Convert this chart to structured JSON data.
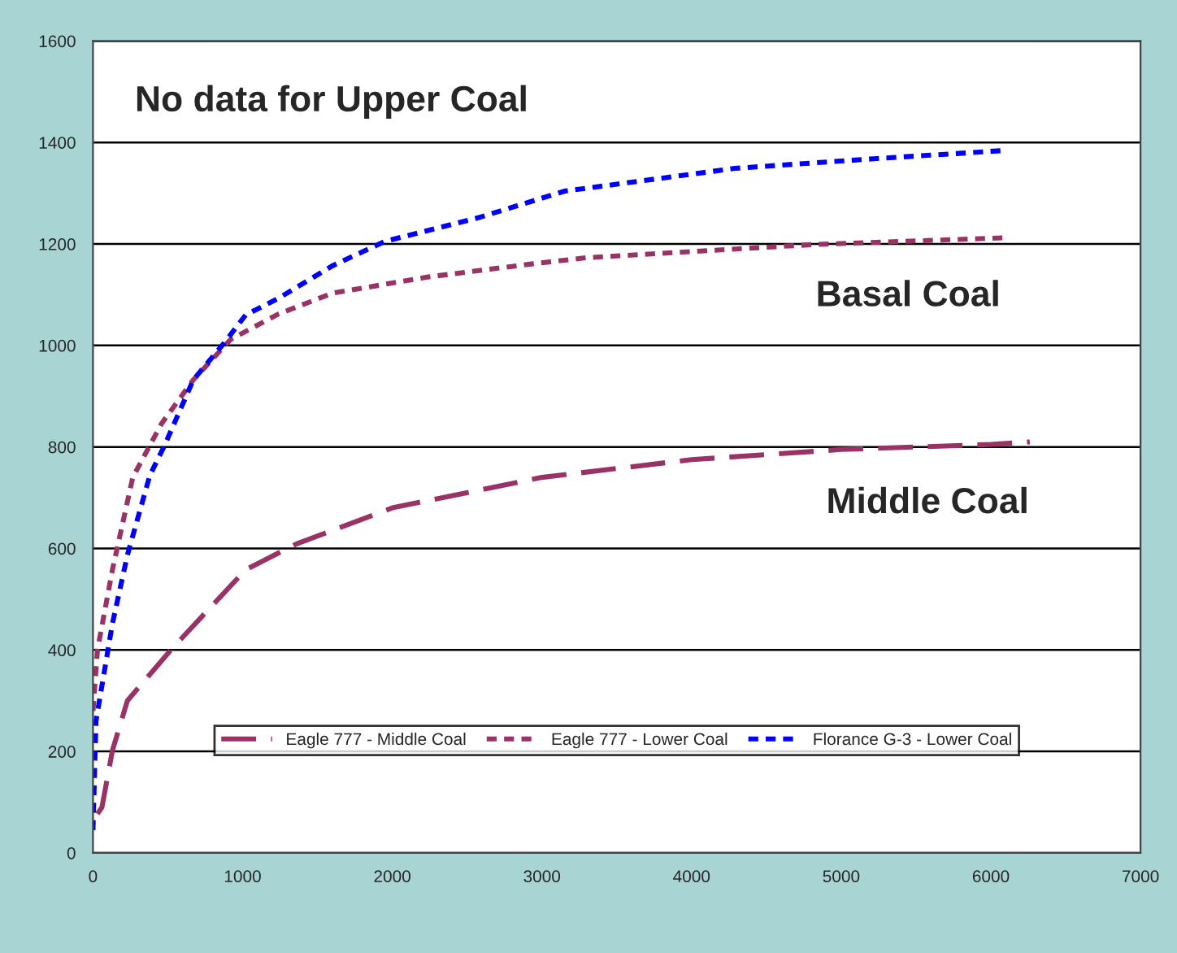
{
  "chart_data": {
    "type": "line",
    "xlim": [
      0,
      7000
    ],
    "xticks": [
      0,
      1000,
      2000,
      3000,
      4000,
      5000,
      6000,
      7000
    ],
    "ylim": [
      0,
      1600
    ],
    "yticks": [
      0,
      200,
      400,
      600,
      800,
      1000,
      1200,
      1400,
      1600
    ],
    "grid": "y",
    "legend": "bottom",
    "marker": "none",
    "annotations": [
      "No data for Upper Coal",
      "Basal Coal",
      "Middle Coal"
    ],
    "series": [
      {
        "name": "Eagle 777 - Middle Coal",
        "color": "#993366",
        "line_style": "dashed",
        "x": [
          30,
          60,
          130,
          230,
          520,
          1020,
          1360,
          2000,
          3000,
          4000,
          5000,
          6000,
          6260
        ],
        "values": [
          77,
          90,
          202,
          300,
          400,
          558,
          609,
          680,
          740,
          775,
          795,
          805,
          810
        ]
      },
      {
        "name": "Eagle 777 - Lower Coal",
        "color": "#993366",
        "line_style": "dotted",
        "x": [
          0,
          30,
          130,
          230,
          266,
          458,
          670,
          920,
          1240,
          1600,
          2240,
          2940,
          3300,
          4820,
          6080
        ],
        "values": [
          280,
          400,
          558,
          692,
          740,
          846,
          932,
          1012,
          1062,
          1103,
          1135,
          1161,
          1173,
          1199,
          1212
        ]
      },
      {
        "name": "Florance G-3 - Lower Coal",
        "color": "#0000ff",
        "line_style": "dotted",
        "x": [
          0,
          20,
          130,
          230,
          380,
          480,
          670,
          880,
          1020,
          1240,
          1600,
          1950,
          2590,
          3150,
          4290,
          5220,
          6080
        ],
        "values": [
          45,
          260,
          452,
          587,
          744,
          804,
          932,
          1006,
          1060,
          1093,
          1157,
          1205,
          1253,
          1304,
          1349,
          1368,
          1384
        ]
      }
    ]
  }
}
